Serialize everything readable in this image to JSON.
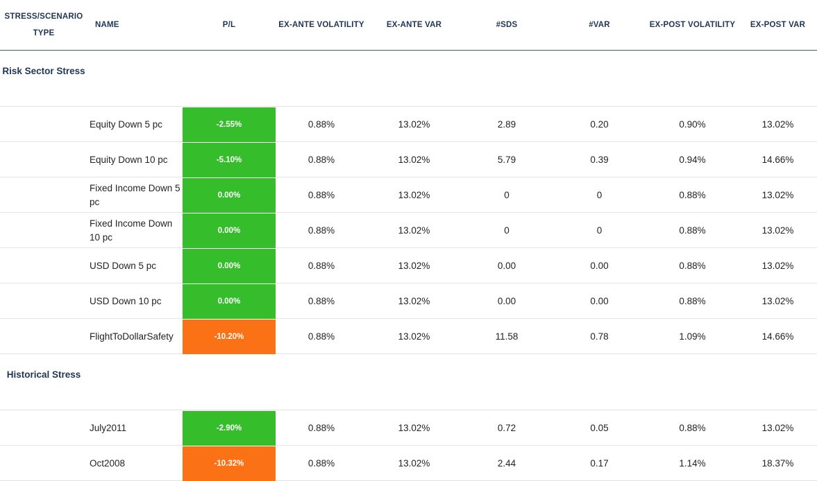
{
  "columns": {
    "type": "STRESS/SCENARIO TYPE",
    "name": "NAME",
    "pl": "P/L",
    "ex_ante_volatility": "EX-ANTE VOLATILITY",
    "ex_ante_var": "EX-ANTE VAR",
    "sds": "#SDS",
    "var": "#VAR",
    "ex_post_volatility": "EX-POST VOLATILITY",
    "ex_post_var": "EX-POST VAR"
  },
  "colors": {
    "positive": "#35bd2c",
    "negative": "#fb7216",
    "header_text": "#1e3557"
  },
  "sections": [
    {
      "label": "Risk Sector Stress",
      "rows": [
        {
          "name": "Equity Down 5 pc",
          "pl": "-2.55%",
          "pl_status": "green",
          "ex_ante_volatility": "0.88%",
          "ex_ante_var": "13.02%",
          "sds": "2.89",
          "var": "0.20",
          "ex_post_volatility": "0.90%",
          "ex_post_var": "13.02%"
        },
        {
          "name": "Equity Down 10 pc",
          "pl": "-5.10%",
          "pl_status": "green",
          "ex_ante_volatility": "0.88%",
          "ex_ante_var": "13.02%",
          "sds": "5.79",
          "var": "0.39",
          "ex_post_volatility": "0.94%",
          "ex_post_var": "14.66%"
        },
        {
          "name": "Fixed Income Down 5 pc",
          "pl": "0.00%",
          "pl_status": "green",
          "ex_ante_volatility": "0.88%",
          "ex_ante_var": "13.02%",
          "sds": "0",
          "var": "0",
          "ex_post_volatility": "0.88%",
          "ex_post_var": "13.02%"
        },
        {
          "name": "Fixed Income Down 10 pc",
          "pl": "0.00%",
          "pl_status": "green",
          "ex_ante_volatility": "0.88%",
          "ex_ante_var": "13.02%",
          "sds": "0",
          "var": "0",
          "ex_post_volatility": "0.88%",
          "ex_post_var": "13.02%"
        },
        {
          "name": "USD Down 5 pc",
          "pl": "0.00%",
          "pl_status": "green",
          "ex_ante_volatility": "0.88%",
          "ex_ante_var": "13.02%",
          "sds": "0.00",
          "var": "0.00",
          "ex_post_volatility": "0.88%",
          "ex_post_var": "13.02%"
        },
        {
          "name": "USD Down 10 pc",
          "pl": "0.00%",
          "pl_status": "green",
          "ex_ante_volatility": "0.88%",
          "ex_ante_var": "13.02%",
          "sds": "0.00",
          "var": "0.00",
          "ex_post_volatility": "0.88%",
          "ex_post_var": "13.02%"
        },
        {
          "name": "FlightToDollarSafety",
          "pl": "-10.20%",
          "pl_status": "orange",
          "ex_ante_volatility": "0.88%",
          "ex_ante_var": "13.02%",
          "sds": "11.58",
          "var": "0.78",
          "ex_post_volatility": "1.09%",
          "ex_post_var": "14.66%"
        }
      ]
    },
    {
      "label": "Historical Stress",
      "rows": [
        {
          "name": "July2011",
          "pl": "-2.90%",
          "pl_status": "green",
          "ex_ante_volatility": "0.88%",
          "ex_ante_var": "13.02%",
          "sds": "0.72",
          "var": "0.05",
          "ex_post_volatility": "0.88%",
          "ex_post_var": "13.02%"
        },
        {
          "name": "Oct2008",
          "pl": "-10.32%",
          "pl_status": "orange",
          "ex_ante_volatility": "0.88%",
          "ex_ante_var": "13.02%",
          "sds": "2.44",
          "var": "0.17",
          "ex_post_volatility": "1.14%",
          "ex_post_var": "18.37%"
        }
      ]
    }
  ]
}
